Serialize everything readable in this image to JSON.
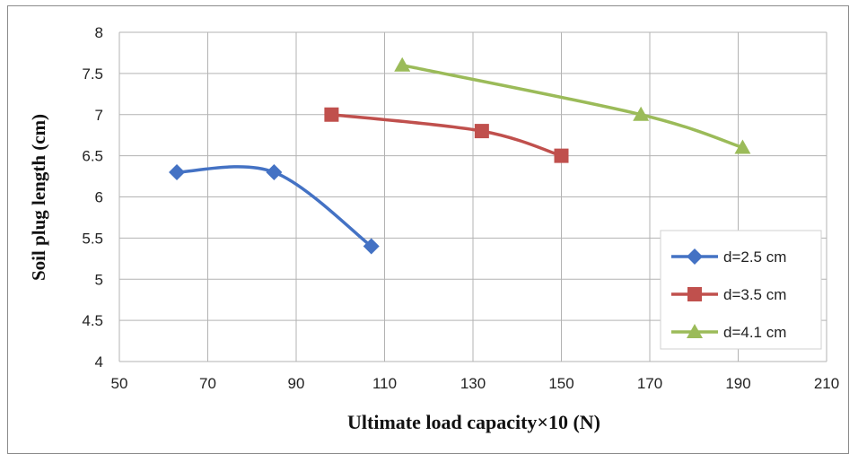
{
  "chart_data": {
    "type": "scatter",
    "title": "",
    "xlabel": "Ultimate load capacity×10 (N)",
    "ylabel": "Soil plug length (cm)",
    "xlim": [
      50,
      210
    ],
    "ylim": [
      4,
      8
    ],
    "xticks": [
      "50",
      "70",
      "90",
      "110",
      "130",
      "150",
      "170",
      "190",
      "210"
    ],
    "yticks": [
      "4",
      "4.5",
      "5",
      "5.5",
      "6",
      "6.5",
      "7",
      "7.5",
      "8"
    ],
    "grid": true,
    "smoothed_lines": true,
    "legend_position": "right",
    "series": [
      {
        "name": "d=2.5 cm",
        "marker": "diamond",
        "color": "#4472C4",
        "points": [
          [
            63,
            6.3
          ],
          [
            85,
            6.3
          ],
          [
            107,
            5.4
          ]
        ]
      },
      {
        "name": "d=3.5 cm",
        "marker": "square",
        "color": "#C0504D",
        "points": [
          [
            98,
            7.0
          ],
          [
            132,
            6.8
          ],
          [
            150,
            6.5
          ]
        ]
      },
      {
        "name": "d=4.1 cm",
        "marker": "triangle",
        "color": "#9BBB59",
        "points": [
          [
            114,
            7.6
          ],
          [
            168,
            7.0
          ],
          [
            191,
            6.6
          ]
        ]
      }
    ]
  }
}
